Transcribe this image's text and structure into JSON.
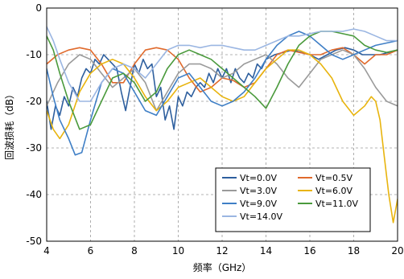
{
  "chart_data": {
    "type": "line",
    "xlabel": "频率（GHz）",
    "ylabel": "回波损耗（dB）",
    "xlim": [
      4,
      20
    ],
    "ylim": [
      -50,
      0
    ],
    "xticks": [
      4,
      6,
      8,
      10,
      12,
      14,
      16,
      18,
      20
    ],
    "yticks": [
      0,
      -10,
      -20,
      -30,
      -40,
      -50
    ],
    "grid": true,
    "legend_position": "lower-right",
    "series": [
      {
        "name": "Vt=0.0V",
        "color": "#2e5f9e",
        "x": [
          4.0,
          4.2,
          4.4,
          4.6,
          4.8,
          5.0,
          5.2,
          5.4,
          5.6,
          5.8,
          6.0,
          6.2,
          6.4,
          6.6,
          6.8,
          7.0,
          7.2,
          7.4,
          7.6,
          7.8,
          8.0,
          8.2,
          8.4,
          8.6,
          8.8,
          9.0,
          9.2,
          9.4,
          9.6,
          9.8,
          10.0,
          10.2,
          10.4,
          10.6,
          10.8,
          11.0,
          11.2,
          11.4,
          11.6,
          11.8,
          12.0,
          12.2,
          12.4,
          12.6,
          12.8,
          13.0,
          13.2,
          13.4,
          13.6,
          13.8,
          14.0,
          14.4,
          14.8,
          15.2,
          15.6,
          16.0,
          16.4,
          16.8,
          17.2,
          17.6,
          18.0,
          18.4,
          18.8,
          19.2,
          19.6,
          20.0
        ],
        "values": [
          -20,
          -26,
          -21,
          -23,
          -19,
          -21,
          -17,
          -19,
          -15,
          -13,
          -14,
          -11,
          -12,
          -10,
          -11,
          -12,
          -13,
          -18,
          -22,
          -17,
          -12,
          -14,
          -11,
          -13,
          -12,
          -19,
          -17,
          -24,
          -21,
          -26,
          -19,
          -21,
          -18,
          -19,
          -17,
          -16,
          -17,
          -14,
          -16,
          -13,
          -15,
          -13,
          -16,
          -13,
          -15,
          -16,
          -14,
          -15,
          -12,
          -13,
          -11,
          -10,
          -9.5,
          -9,
          -9.5,
          -10,
          -11,
          -10,
          -9,
          -8.5,
          -9,
          -10,
          -10,
          -10,
          -9.5,
          -9
        ]
      },
      {
        "name": "Vt=0.5V",
        "color": "#e06a2c",
        "x": [
          4.0,
          4.5,
          5.0,
          5.5,
          6.0,
          6.5,
          7.0,
          7.5,
          8.0,
          8.5,
          9.0,
          9.5,
          10.0,
          10.5,
          11.0,
          11.5,
          12.0,
          12.5,
          13.0,
          13.5,
          14.0,
          14.5,
          15.0,
          15.5,
          16.0,
          16.5,
          17.0,
          17.5,
          18.0,
          18.5,
          19.0,
          19.5,
          20.0
        ],
        "values": [
          -12,
          -10,
          -9,
          -8.5,
          -9,
          -12,
          -16,
          -16,
          -12,
          -9,
          -8.5,
          -9,
          -11,
          -15,
          -18,
          -17,
          -15,
          -15.5,
          -17,
          -16,
          -13,
          -10,
          -9,
          -9.5,
          -10,
          -10,
          -9,
          -8.5,
          -10,
          -12,
          -10,
          -10,
          -9
        ]
      },
      {
        "name": "Vt=3.0V",
        "color": "#9a9a9a",
        "x": [
          4.0,
          4.5,
          5.0,
          5.5,
          6.0,
          6.5,
          7.0,
          7.5,
          8.0,
          8.5,
          9.0,
          9.5,
          10.0,
          10.5,
          11.0,
          11.5,
          12.0,
          12.5,
          13.0,
          13.5,
          14.0,
          14.5,
          15.0,
          15.5,
          16.0,
          16.5,
          17.0,
          17.5,
          18.0,
          18.5,
          19.0,
          19.5,
          20.0
        ],
        "values": [
          -21,
          -16,
          -12,
          -10,
          -11,
          -14,
          -17,
          -15,
          -13,
          -16,
          -22,
          -18,
          -14,
          -12,
          -12,
          -13,
          -15,
          -14,
          -12,
          -11,
          -10,
          -12,
          -15,
          -17,
          -14,
          -11,
          -10,
          -9,
          -10,
          -13,
          -17,
          -20,
          -21
        ]
      },
      {
        "name": "Vt=6.0V",
        "color": "#e8b40e",
        "x": [
          4.0,
          4.3,
          4.6,
          5.0,
          5.5,
          6.0,
          6.5,
          7.0,
          7.5,
          8.0,
          8.5,
          9.0,
          9.5,
          10.0,
          10.5,
          11.0,
          11.5,
          12.0,
          12.5,
          13.0,
          13.5,
          14.0,
          14.5,
          15.0,
          15.5,
          16.0,
          16.5,
          17.0,
          17.5,
          18.0,
          18.5,
          18.8,
          19.0,
          19.2,
          19.4,
          19.6,
          19.8,
          20.0
        ],
        "values": [
          -22,
          -26,
          -28,
          -25,
          -18,
          -14,
          -12,
          -11,
          -12,
          -15,
          -19,
          -22,
          -20,
          -17,
          -16,
          -15,
          -17,
          -19,
          -20,
          -19,
          -16,
          -13,
          -11,
          -9,
          -9,
          -10,
          -12,
          -15,
          -20,
          -23,
          -21,
          -19,
          -20,
          -24,
          -32,
          -40,
          -46,
          -41
        ]
      },
      {
        "name": "Vt=9.0V",
        "color": "#3f7fc6",
        "x": [
          4.0,
          4.3,
          4.6,
          5.0,
          5.3,
          5.6,
          6.0,
          6.5,
          7.0,
          7.5,
          8.0,
          8.5,
          9.0,
          9.5,
          10.0,
          10.5,
          11.0,
          11.5,
          12.0,
          12.5,
          13.0,
          13.5,
          14.0,
          14.5,
          15.0,
          15.5,
          16.0,
          16.5,
          17.0,
          17.5,
          18.0,
          18.5,
          19.0,
          19.5,
          20.0
        ],
        "values": [
          -13,
          -19,
          -24,
          -28,
          -31.5,
          -31,
          -24,
          -16,
          -13,
          -14,
          -18,
          -22,
          -23,
          -19,
          -15,
          -14,
          -17,
          -20,
          -21,
          -20,
          -18,
          -15,
          -11,
          -8,
          -6,
          -5,
          -6,
          -8,
          -10,
          -11,
          -10,
          -9,
          -8,
          -7.5,
          -7
        ]
      },
      {
        "name": "Vt=11.0V",
        "color": "#4a9a3c",
        "x": [
          4.0,
          4.3,
          4.6,
          5.0,
          5.5,
          6.0,
          6.5,
          7.0,
          7.5,
          8.0,
          8.5,
          9.0,
          9.5,
          10.0,
          10.5,
          11.0,
          11.5,
          12.0,
          12.5,
          13.0,
          13.5,
          14.0,
          14.5,
          15.0,
          15.5,
          16.0,
          16.5,
          17.0,
          17.5,
          18.0,
          18.5,
          19.0,
          19.5,
          20.0
        ],
        "values": [
          -6,
          -9,
          -14,
          -20,
          -26,
          -25,
          -20,
          -15,
          -14,
          -16,
          -20,
          -18,
          -13,
          -10,
          -9,
          -10,
          -11,
          -13,
          -15,
          -17,
          -19,
          -21.5,
          -17,
          -12,
          -8,
          -6,
          -5,
          -5,
          -5.5,
          -6,
          -8,
          -9,
          -9.5,
          -9
        ]
      },
      {
        "name": "Vt=14.0V",
        "color": "#9bb6e2",
        "x": [
          4.0,
          4.3,
          4.6,
          5.0,
          5.5,
          6.0,
          6.5,
          7.0,
          7.5,
          8.0,
          8.5,
          9.0,
          9.5,
          10.0,
          10.5,
          11.0,
          11.5,
          12.0,
          12.5,
          13.0,
          13.5,
          14.0,
          14.5,
          15.0,
          15.5,
          16.0,
          16.5,
          17.0,
          17.5,
          18.0,
          18.5,
          19.0,
          19.5,
          20.0
        ],
        "values": [
          -4,
          -7,
          -11,
          -16,
          -20,
          -20,
          -16,
          -13,
          -12,
          -13,
          -15,
          -12,
          -9,
          -8,
          -8,
          -8.5,
          -8,
          -8,
          -8.5,
          -9,
          -9,
          -8,
          -7,
          -6,
          -6,
          -5.5,
          -5,
          -5,
          -5,
          -4.5,
          -5,
          -6,
          -7,
          -7
        ]
      }
    ]
  }
}
